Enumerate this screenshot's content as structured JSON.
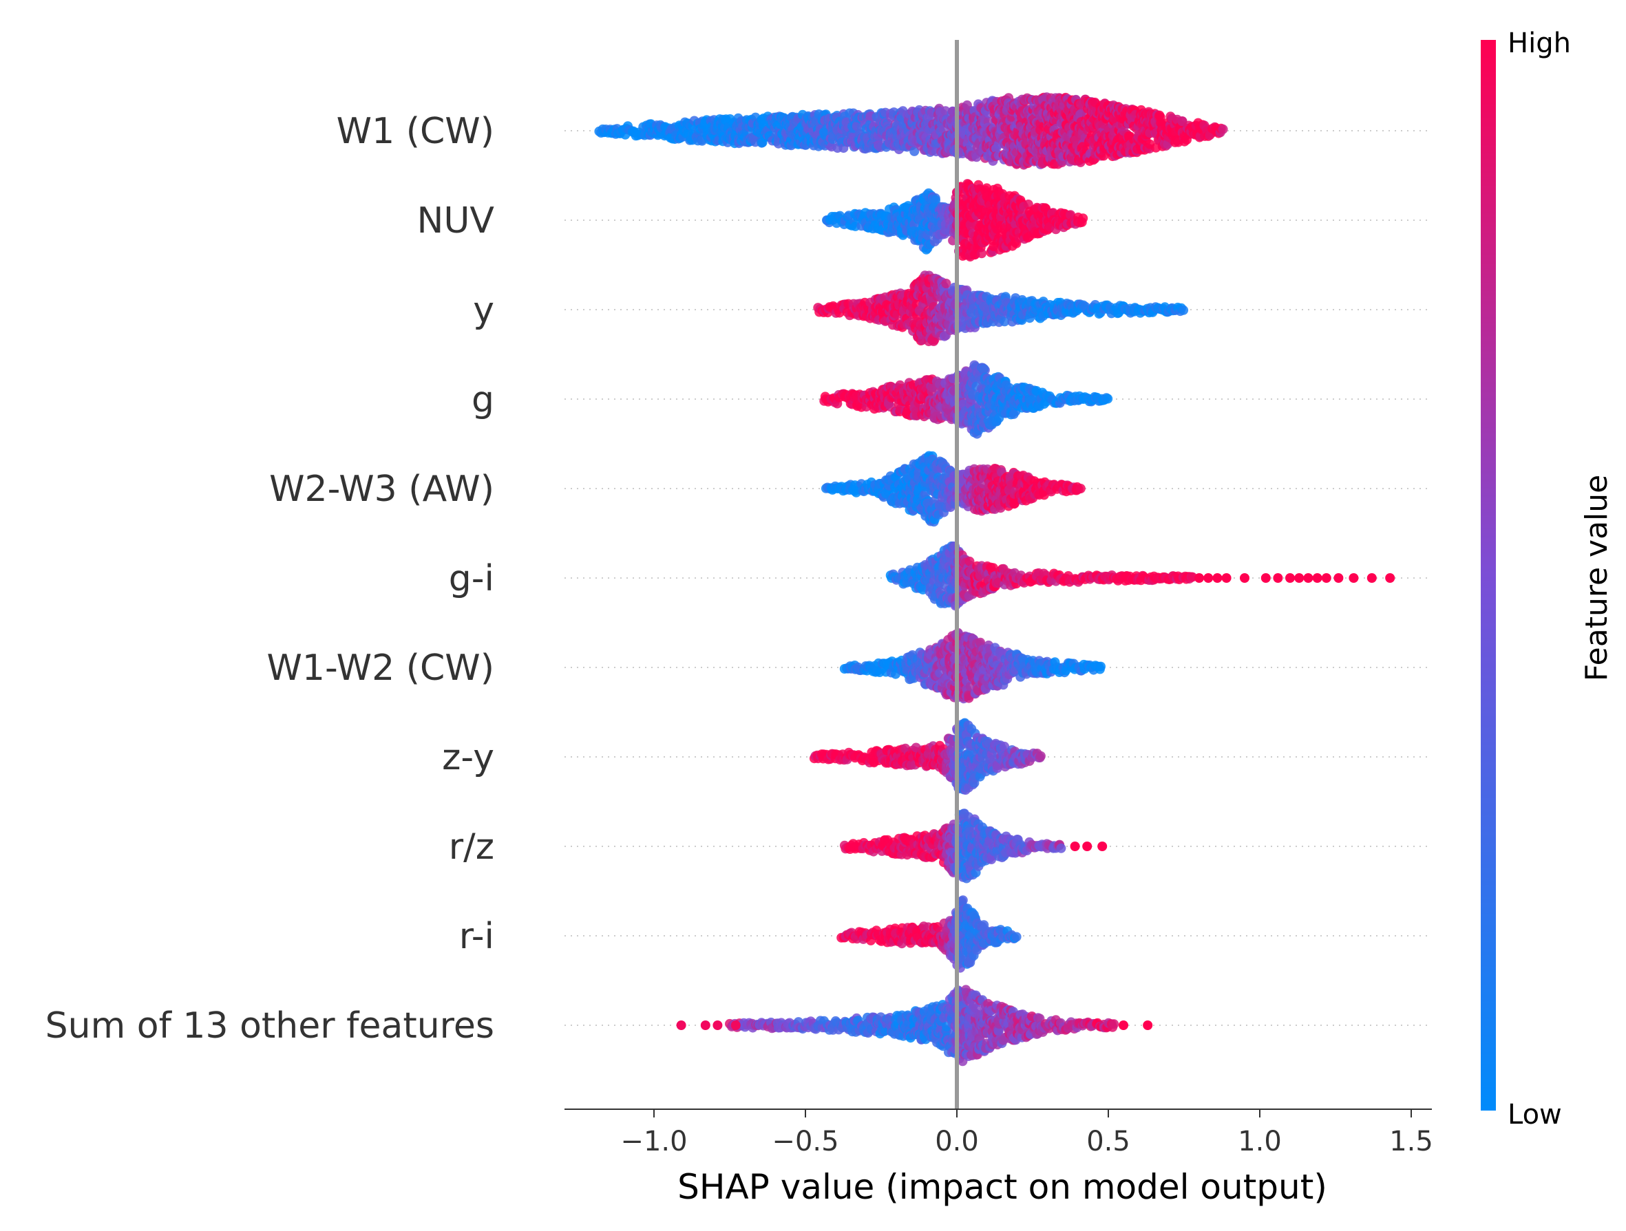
{
  "chart_data": {
    "type": "scatter",
    "subtype": "shap-beeswarm",
    "title": "",
    "xlabel": "SHAP value (impact on model output)",
    "ylabel": "",
    "xlim": [
      -1.3,
      1.57
    ],
    "xticks": [
      -1.0,
      -0.5,
      0.0,
      0.5,
      1.0,
      1.5
    ],
    "xtick_labels": [
      "−1.0",
      "−0.5",
      "0.0",
      "0.5",
      "1.0",
      "1.5"
    ],
    "colorbar": {
      "title": "Feature value",
      "high_label": "High",
      "low_label": "Low",
      "low_color": "#008bfb",
      "high_color": "#ff0051"
    },
    "features": [
      {
        "name": "W1 (CW)",
        "min": -1.18,
        "max": 0.88,
        "spread": 0.42,
        "outliers": [],
        "knots": [
          [
            -1.18,
            0.05,
            0.0
          ],
          [
            -1.05,
            0.15,
            0.0
          ],
          [
            -0.8,
            0.3,
            0.05
          ],
          [
            -0.5,
            0.42,
            0.2
          ],
          [
            -0.2,
            0.5,
            0.4
          ],
          [
            0.0,
            0.62,
            0.55
          ],
          [
            0.2,
            0.9,
            0.72
          ],
          [
            0.4,
            0.85,
            0.85
          ],
          [
            0.6,
            0.55,
            0.95
          ],
          [
            0.75,
            0.3,
            1.0
          ],
          [
            0.88,
            0.05,
            1.0
          ]
        ]
      },
      {
        "name": "NUV",
        "min": -0.43,
        "max": 0.42,
        "spread": 0.38,
        "outliers": [],
        "knots": [
          [
            -0.43,
            0.08,
            0.0
          ],
          [
            -0.3,
            0.2,
            0.05
          ],
          [
            -0.15,
            0.45,
            0.1
          ],
          [
            -0.1,
            0.8,
            0.1
          ],
          [
            -0.03,
            0.3,
            0.4
          ],
          [
            0.02,
            1.0,
            1.0
          ],
          [
            0.15,
            0.8,
            1.0
          ],
          [
            0.25,
            0.4,
            1.0
          ],
          [
            0.42,
            0.06,
            1.0
          ]
        ]
      },
      {
        "name": "y",
        "min": -0.46,
        "max": 0.75,
        "spread": 0.35,
        "outliers": [],
        "knots": [
          [
            -0.46,
            0.06,
            1.0
          ],
          [
            -0.3,
            0.2,
            0.95
          ],
          [
            -0.15,
            0.55,
            0.9
          ],
          [
            -0.1,
            0.95,
            0.85
          ],
          [
            0.0,
            0.55,
            0.5
          ],
          [
            0.1,
            0.4,
            0.3
          ],
          [
            0.3,
            0.2,
            0.1
          ],
          [
            0.5,
            0.12,
            0.02
          ],
          [
            0.75,
            0.05,
            0.0
          ]
        ]
      },
      {
        "name": "g",
        "min": -0.44,
        "max": 0.5,
        "spread": 0.35,
        "outliers": [],
        "knots": [
          [
            -0.44,
            0.06,
            1.0
          ],
          [
            -0.25,
            0.3,
            0.95
          ],
          [
            -0.1,
            0.5,
            0.85
          ],
          [
            0.0,
            0.6,
            0.6
          ],
          [
            0.07,
            0.95,
            0.3
          ],
          [
            0.15,
            0.5,
            0.15
          ],
          [
            0.3,
            0.12,
            0.05
          ],
          [
            0.5,
            0.04,
            0.0
          ]
        ]
      },
      {
        "name": "W2-W3 (AW)",
        "min": -0.43,
        "max": 0.41,
        "spread": 0.35,
        "outliers": [],
        "knots": [
          [
            -0.43,
            0.05,
            0.0
          ],
          [
            -0.25,
            0.2,
            0.05
          ],
          [
            -0.08,
            0.9,
            0.15
          ],
          [
            0.0,
            0.35,
            0.45
          ],
          [
            0.08,
            0.6,
            0.8
          ],
          [
            0.15,
            0.5,
            0.9
          ],
          [
            0.3,
            0.15,
            1.0
          ],
          [
            0.41,
            0.04,
            1.0
          ]
        ]
      },
      {
        "name": "g-i",
        "min": -0.22,
        "max": 0.78,
        "spread": 0.38,
        "outliers": [
          0.8,
          0.83,
          0.86,
          0.89,
          0.95,
          1.02,
          1.06,
          1.1,
          1.13,
          1.16,
          1.19,
          1.22,
          1.26,
          1.31,
          1.37,
          1.43
        ],
        "knots": [
          [
            -0.22,
            0.08,
            0.1
          ],
          [
            -0.1,
            0.35,
            0.2
          ],
          [
            -0.02,
            0.95,
            0.3
          ],
          [
            0.03,
            0.5,
            0.8
          ],
          [
            0.2,
            0.15,
            0.9
          ],
          [
            0.5,
            0.08,
            1.0
          ],
          [
            0.78,
            0.04,
            1.0
          ]
        ]
      },
      {
        "name": "W1-W2 (CW)",
        "min": -0.37,
        "max": 0.48,
        "spread": 0.35,
        "outliers": [],
        "knots": [
          [
            -0.37,
            0.05,
            0.05
          ],
          [
            -0.2,
            0.18,
            0.05
          ],
          [
            -0.05,
            0.6,
            0.6
          ],
          [
            0.0,
            0.95,
            0.7
          ],
          [
            0.1,
            0.6,
            0.6
          ],
          [
            0.25,
            0.2,
            0.2
          ],
          [
            0.48,
            0.05,
            0.0
          ]
        ]
      },
      {
        "name": "z-y",
        "min": -0.47,
        "max": 0.28,
        "spread": 0.35,
        "outliers": [],
        "knots": [
          [
            -0.47,
            0.06,
            1.0
          ],
          [
            -0.25,
            0.18,
            1.0
          ],
          [
            -0.05,
            0.3,
            0.9
          ],
          [
            0.02,
            0.95,
            0.25
          ],
          [
            0.1,
            0.4,
            0.35
          ],
          [
            0.28,
            0.06,
            0.6
          ]
        ]
      },
      {
        "name": "r/z",
        "min": -0.37,
        "max": 0.35,
        "spread": 0.35,
        "outliers": [
          0.39,
          0.43,
          0.48
        ],
        "knots": [
          [
            -0.37,
            0.06,
            1.0
          ],
          [
            -0.2,
            0.2,
            1.0
          ],
          [
            -0.05,
            0.35,
            0.9
          ],
          [
            0.02,
            0.95,
            0.25
          ],
          [
            0.12,
            0.35,
            0.35
          ],
          [
            0.25,
            0.1,
            0.5
          ],
          [
            0.35,
            0.05,
            0.6
          ]
        ]
      },
      {
        "name": "r-i",
        "min": -0.38,
        "max": 0.2,
        "spread": 0.35,
        "outliers": [],
        "knots": [
          [
            -0.38,
            0.06,
            1.0
          ],
          [
            -0.2,
            0.2,
            1.0
          ],
          [
            -0.05,
            0.28,
            0.9
          ],
          [
            0.02,
            0.95,
            0.25
          ],
          [
            0.08,
            0.3,
            0.25
          ],
          [
            0.2,
            0.05,
            0.2
          ]
        ]
      },
      {
        "name": "Sum of 13 other features",
        "min": -0.75,
        "max": 0.52,
        "spread": 0.4,
        "outliers": [
          -0.91,
          -0.83,
          -0.79,
          -0.73,
          0.55,
          0.63
        ],
        "knots": [
          [
            -0.75,
            0.05,
            0.7
          ],
          [
            -0.5,
            0.1,
            0.4
          ],
          [
            -0.2,
            0.25,
            0.2
          ],
          [
            -0.05,
            0.55,
            0.2
          ],
          [
            0.02,
            1.0,
            0.5
          ],
          [
            0.12,
            0.55,
            0.6
          ],
          [
            0.3,
            0.15,
            0.7
          ],
          [
            0.52,
            0.05,
            0.9
          ]
        ]
      }
    ]
  }
}
